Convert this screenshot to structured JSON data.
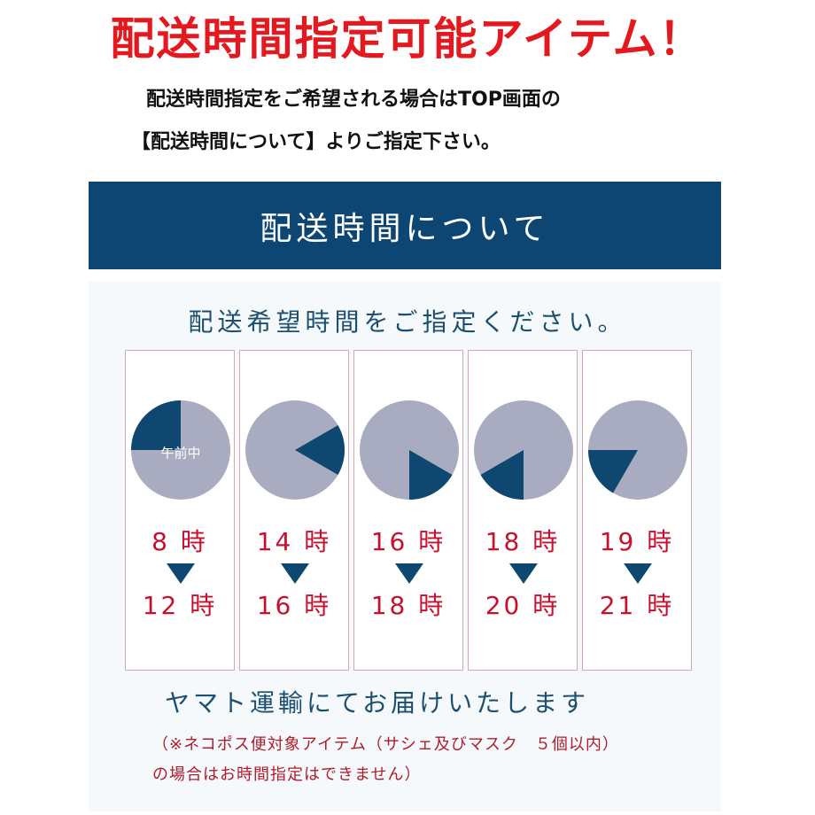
{
  "headline": "配送時間指定可能アイテム！",
  "intro": {
    "line1": "配送時間指定をご希望される場合はTOP画面の",
    "line2": "【配送時間について】よりご指定下さい。"
  },
  "section_title": "配送時間について",
  "panel_heading": "配送希望時間をご指定ください。",
  "slots": [
    {
      "clock_label": "午前中",
      "start": "8 時",
      "end": "12 時"
    },
    {
      "clock_label": "",
      "start": "14 時",
      "end": "16 時"
    },
    {
      "clock_label": "",
      "start": "16 時",
      "end": "18 時"
    },
    {
      "clock_label": "",
      "start": "18 時",
      "end": "20 時"
    },
    {
      "clock_label": "",
      "start": "19 時",
      "end": "21 時"
    }
  ],
  "delivery_note": "ヤマト運輸にてお届けいたします",
  "notice": {
    "line1": "（※ネコポス便対象アイテム（サシェ及びマスク　５個以内）",
    "line2": "の場合はお時間指定はできません）"
  },
  "colors": {
    "headline": "#e3191f",
    "banner": "#0d4673",
    "accent_text": "#1b4f70",
    "time_text": "#c8102e",
    "clock_face": "#a9acc0",
    "clock_wedge": "#0e4770",
    "card_border": "#d3a9b1"
  }
}
